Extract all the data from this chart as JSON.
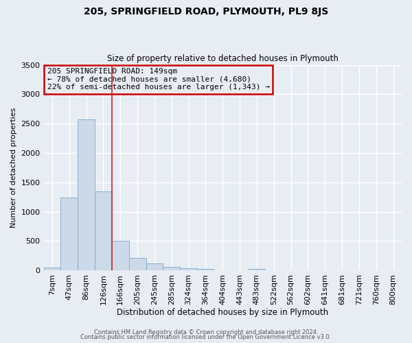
{
  "title": "205, SPRINGFIELD ROAD, PLYMOUTH, PL9 8JS",
  "subtitle": "Size of property relative to detached houses in Plymouth",
  "xlabel": "Distribution of detached houses by size in Plymouth",
  "ylabel": "Number of detached properties",
  "bar_labels": [
    "7sqm",
    "47sqm",
    "86sqm",
    "126sqm",
    "166sqm",
    "205sqm",
    "245sqm",
    "285sqm",
    "324sqm",
    "364sqm",
    "404sqm",
    "443sqm",
    "483sqm",
    "522sqm",
    "562sqm",
    "602sqm",
    "641sqm",
    "681sqm",
    "721sqm",
    "760sqm",
    "800sqm"
  ],
  "bar_values": [
    50,
    1240,
    2570,
    1350,
    500,
    210,
    115,
    55,
    40,
    30,
    0,
    0,
    25,
    0,
    0,
    0,
    0,
    0,
    0,
    0,
    0
  ],
  "bar_color": "#ccd9e8",
  "bar_edge_color": "#7aaac8",
  "vline_x": 3.5,
  "vline_color": "#cc2222",
  "ylim": [
    0,
    3500
  ],
  "annotation_box_text": "205 SPRINGFIELD ROAD: 149sqm\n← 78% of detached houses are smaller (4,680)\n22% of semi-detached houses are larger (1,343) →",
  "annotation_box_color": "#cc0000",
  "background_color": "#e8edf4",
  "grid_color": "#ffffff",
  "footer_line1": "Contains HM Land Registry data © Crown copyright and database right 2024.",
  "footer_line2": "Contains public sector information licensed under the Open Government Licence v3.0."
}
